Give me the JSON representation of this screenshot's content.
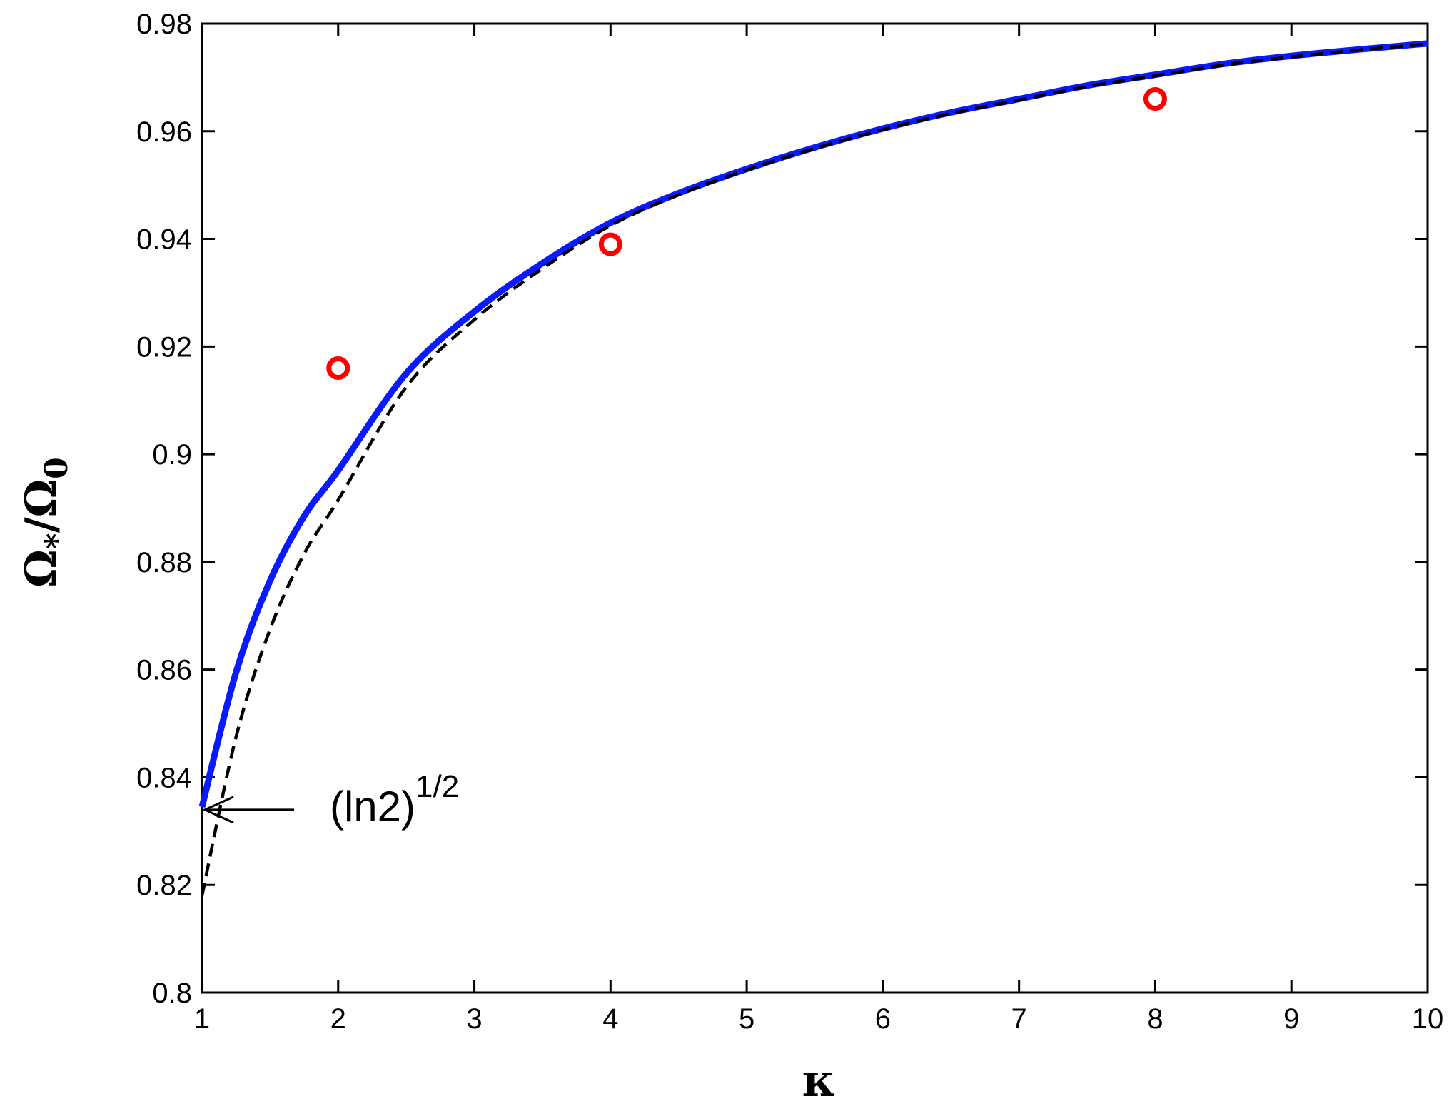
{
  "chart_data": {
    "type": "line",
    "xlabel": "κ",
    "ylabel": {
      "main": "Ω",
      "sub1": "*",
      "slash": "/",
      "main2": "Ω",
      "sub2": "0"
    },
    "xlim": [
      1,
      10
    ],
    "ylim": [
      0.8,
      0.98
    ],
    "xticks": [
      1,
      2,
      3,
      4,
      5,
      6,
      7,
      8,
      9,
      10
    ],
    "xtick_labels": [
      "1",
      "2",
      "3",
      "4",
      "5",
      "6",
      "7",
      "8",
      "9",
      "10"
    ],
    "yticks": [
      0.8,
      0.82,
      0.84,
      0.86,
      0.88,
      0.9,
      0.92,
      0.94,
      0.96,
      0.98
    ],
    "ytick_labels": [
      "0.8",
      "0.82",
      "0.84",
      "0.86",
      "0.88",
      "0.9",
      "0.92",
      "0.94",
      "0.96",
      "0.98"
    ],
    "grid": false,
    "series": [
      {
        "style": "solid",
        "color": "#0a1aff",
        "x": [
          1.0,
          1.25,
          1.5,
          1.75,
          2.0,
          2.5,
          3.0,
          3.5,
          4.0,
          4.5,
          5.0,
          5.5,
          6.0,
          6.5,
          7.0,
          7.5,
          8.0,
          8.5,
          9.0,
          9.5,
          10.0
        ],
        "y": [
          0.8345,
          0.8595,
          0.8765,
          0.8885,
          0.897,
          0.915,
          0.9265,
          0.9355,
          0.943,
          0.9485,
          0.953,
          0.957,
          0.9605,
          0.9635,
          0.966,
          0.9685,
          0.9705,
          0.9725,
          0.974,
          0.9752,
          0.9763
        ]
      },
      {
        "style": "dashed",
        "color": "#000000",
        "x": [
          1.0,
          1.25,
          1.5,
          1.75,
          2.0,
          2.5,
          3.0,
          3.5,
          4.0,
          4.5,
          5.0,
          5.5,
          6.0,
          6.5,
          7.0,
          7.5,
          8.0,
          8.5,
          9.0,
          9.5,
          10.0
        ],
        "y": [
          0.818,
          0.8475,
          0.8675,
          0.8815,
          0.8915,
          0.9125,
          0.925,
          0.9345,
          0.9425,
          0.9482,
          0.9528,
          0.9568,
          0.9603,
          0.9633,
          0.9658,
          0.9683,
          0.9703,
          0.9723,
          0.9738,
          0.9751,
          0.9762
        ]
      },
      {
        "style": "markers",
        "marker": "circle",
        "color": "#ff0000",
        "x": [
          2,
          4,
          8
        ],
        "y": [
          0.916,
          0.939,
          0.966
        ]
      }
    ],
    "annotation": {
      "text_base": "(ln2)",
      "text_sup": "1/2",
      "arrow_target_x": 1.0,
      "arrow_target_y": 0.8345
    }
  }
}
